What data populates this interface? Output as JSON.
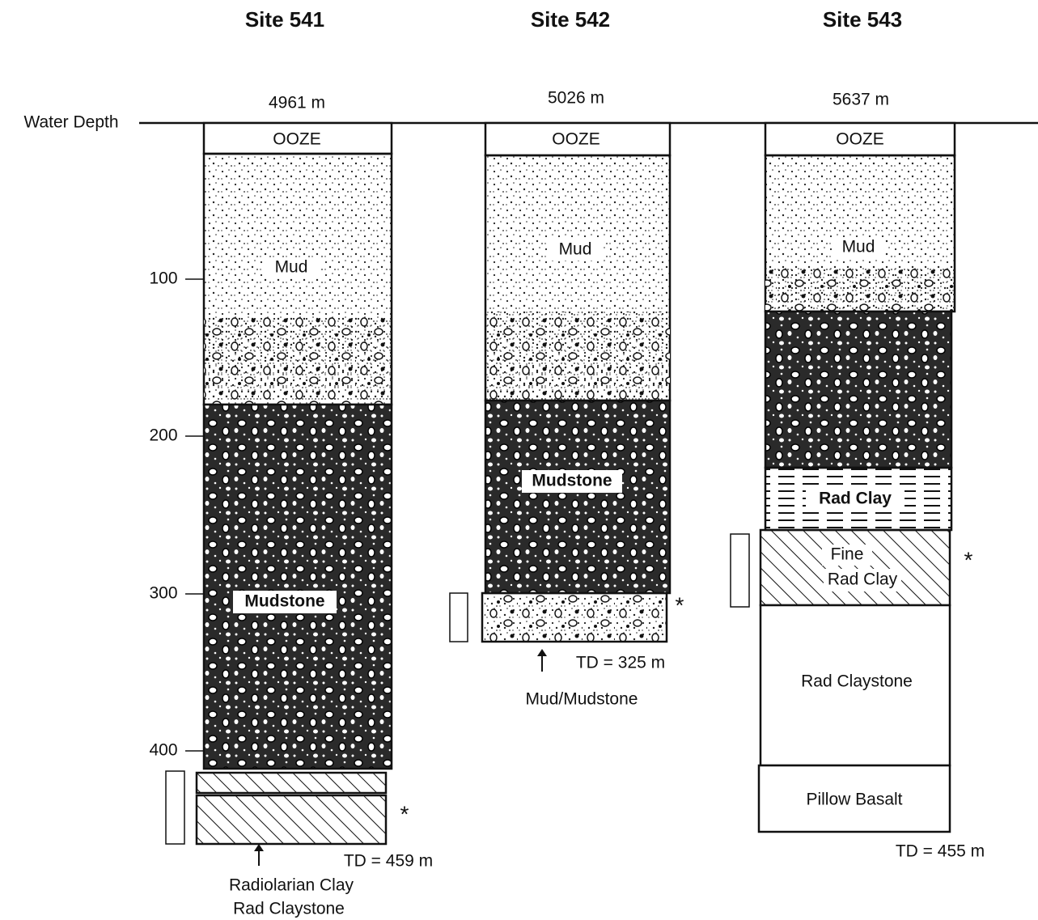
{
  "axis": {
    "label": "Water Depth",
    "ticks": [
      "100",
      "200",
      "300",
      "400"
    ]
  },
  "sites": [
    {
      "title": "Site 541",
      "water_depth": "4961 m",
      "layers": [
        {
          "lines": [
            "OOZE"
          ]
        },
        {
          "lines": [
            "Mud"
          ]
        },
        {
          "lines": [
            "Mudstone"
          ]
        }
      ],
      "core_marker": "*",
      "td": "TD = 459 m",
      "bottom_note": [
        "Radiolarian Clay",
        "Rad Claystone"
      ]
    },
    {
      "title": "Site 542",
      "water_depth": "5026 m",
      "layers": [
        {
          "lines": [
            "OOZE"
          ]
        },
        {
          "lines": [
            "Mud"
          ]
        },
        {
          "lines": [
            "Mudstone"
          ]
        }
      ],
      "core_marker": "*",
      "td": "TD = 325 m",
      "bottom_note": [
        "Mud/Mudstone"
      ]
    },
    {
      "title": "Site 543",
      "water_depth": "5637 m",
      "layers": [
        {
          "lines": [
            "OOZE"
          ]
        },
        {
          "lines": [
            "Mud"
          ]
        },
        {
          "lines": [
            "Rad Clay"
          ]
        },
        {
          "lines": [
            "Fine",
            "Rad Clay"
          ]
        },
        {
          "lines": [
            "Rad Claystone"
          ]
        },
        {
          "lines": [
            "Pillow Basalt"
          ]
        }
      ],
      "core_marker": "*",
      "td": "TD = 455 m"
    }
  ]
}
